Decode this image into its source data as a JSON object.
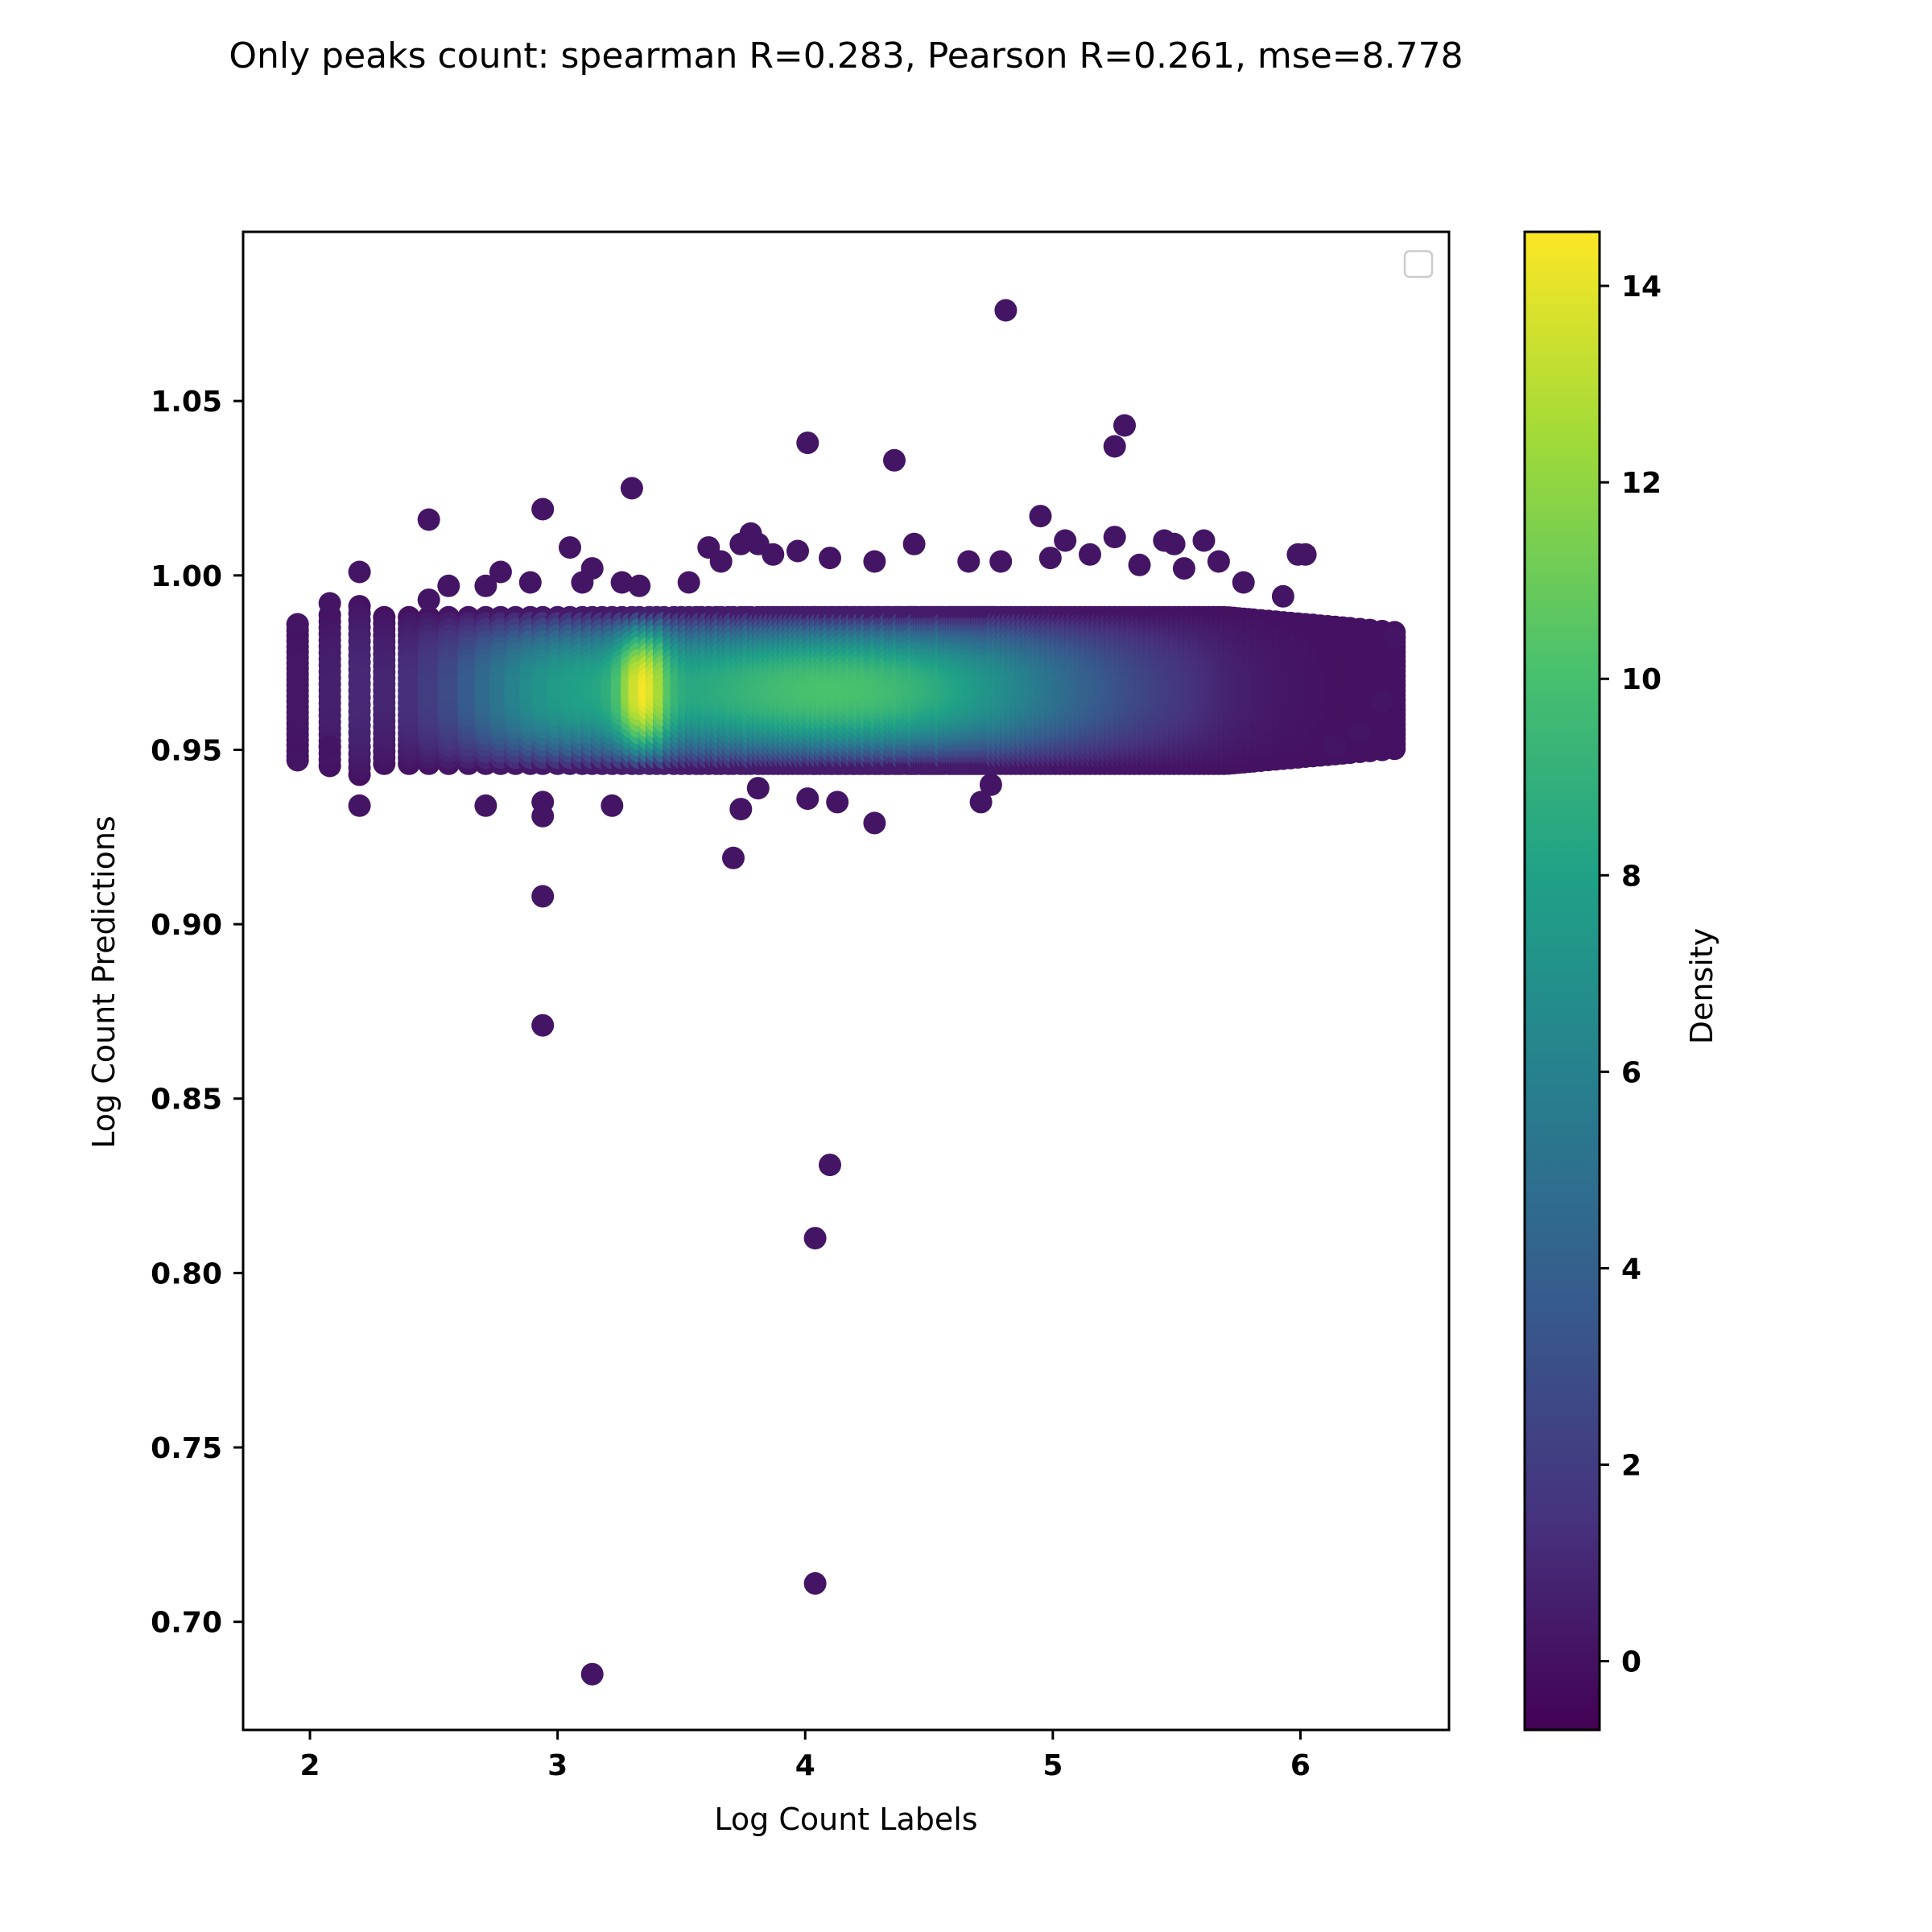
{
  "chart_data": {
    "type": "scatter",
    "title": "Only peaks count: spearman R=0.283, Pearson R=0.261, mse=8.778",
    "xlabel": "Log Count Labels",
    "ylabel": "Log Count Predictions",
    "xlim": [
      1.73,
      6.6
    ],
    "ylim": [
      0.669,
      1.0985
    ],
    "xticks": [
      2,
      3,
      4,
      5,
      6
    ],
    "xtick_labels": [
      "2",
      "3",
      "4",
      "5",
      "6"
    ],
    "yticks": [
      0.7,
      0.75,
      0.8,
      0.85,
      0.9,
      0.95,
      1.0,
      1.05
    ],
    "ytick_labels": [
      "0.70",
      "0.75",
      "0.80",
      "0.85",
      "0.90",
      "0.95",
      "1.00",
      "1.05"
    ],
    "grid": false,
    "legend": "top-right (empty)",
    "colormap": "viridis",
    "colors": [
      "#440154",
      "#46327e",
      "#365c8d",
      "#277f8e",
      "#1fa187",
      "#4ac16d",
      "#a0da39",
      "#fde725"
    ],
    "colorbar": {
      "label": "Density",
      "range": [
        -0.7,
        14.55
      ],
      "ticks": [
        0,
        2,
        4,
        6,
        8,
        10,
        12,
        14
      ],
      "tick_labels": [
        "0",
        "2",
        "4",
        "6",
        "8",
        "10",
        "12",
        "14"
      ]
    },
    "x_levels": [
      1.95,
      2.08,
      2.2,
      2.3,
      2.4,
      2.48,
      2.56,
      2.64,
      2.71,
      2.77,
      2.83,
      2.89,
      2.94,
      3.0,
      3.05,
      3.1,
      3.14,
      3.18,
      3.22,
      3.26,
      3.3,
      3.33,
      3.37,
      3.4,
      3.43,
      3.47,
      3.5,
      3.53,
      3.56,
      3.58,
      3.61,
      3.64,
      3.66,
      3.69,
      3.71,
      3.74,
      3.76,
      3.78,
      3.81,
      3.83,
      3.85,
      3.87,
      3.89,
      3.91,
      3.93,
      3.95,
      3.97,
      3.99,
      4.01,
      4.03,
      4.04,
      4.06,
      4.08,
      4.1,
      4.11,
      4.13,
      4.14,
      4.16,
      4.17,
      4.19,
      4.2,
      4.22,
      4.23,
      4.25,
      4.26,
      4.28,
      4.29,
      4.3,
      4.32,
      4.33,
      4.34,
      4.36,
      4.37,
      4.38,
      4.39,
      4.41,
      4.42,
      4.43,
      4.44,
      4.45,
      4.47,
      4.48,
      4.49,
      4.5,
      4.51,
      4.52,
      4.53,
      4.54,
      4.55,
      4.56,
      4.58,
      4.59,
      4.6,
      4.61,
      4.62,
      4.63,
      4.64,
      4.65,
      4.66,
      4.67,
      4.68,
      4.69,
      4.7,
      4.71,
      4.72,
      4.73,
      4.74,
      4.75,
      4.76,
      4.77,
      4.79,
      4.81,
      4.83,
      4.85,
      4.87,
      4.89,
      4.91,
      4.93,
      4.95,
      4.97,
      4.99,
      5.01,
      5.03,
      5.05,
      5.07,
      5.09,
      5.11,
      5.13,
      5.15,
      5.17,
      5.19,
      5.21,
      5.23,
      5.25,
      5.27,
      5.29,
      5.31,
      5.33,
      5.35,
      5.37,
      5.39,
      5.41,
      5.43,
      5.45,
      5.47,
      5.49,
      5.51,
      5.53,
      5.55,
      5.57,
      5.59,
      5.61,
      5.63,
      5.65,
      5.67,
      5.69,
      5.71,
      5.73,
      5.75,
      5.77,
      5.79,
      5.81,
      5.84,
      5.87,
      5.9,
      5.93,
      5.96,
      5.99,
      6.02,
      6.05,
      6.08,
      6.11,
      6.14,
      6.17,
      6.2,
      6.24,
      6.28,
      6.33,
      6.38
    ],
    "core": {
      "y_center": 0.967,
      "y_half_width": 0.021,
      "density_peak_x": 3.37,
      "density_max": 14.5
    },
    "outliers": [
      {
        "x": 1.95,
        "y": 0.986
      },
      {
        "x": 1.95,
        "y": 0.947
      },
      {
        "x": 2.08,
        "y": 0.992
      },
      {
        "x": 2.08,
        "y": 0.951
      },
      {
        "x": 2.2,
        "y": 1.001
      },
      {
        "x": 2.2,
        "y": 0.934
      },
      {
        "x": 2.48,
        "y": 1.016
      },
      {
        "x": 2.48,
        "y": 0.993
      },
      {
        "x": 2.56,
        "y": 0.997
      },
      {
        "x": 2.71,
        "y": 0.997
      },
      {
        "x": 2.71,
        "y": 0.934
      },
      {
        "x": 2.77,
        "y": 1.001
      },
      {
        "x": 2.89,
        "y": 0.998
      },
      {
        "x": 2.94,
        "y": 1.019
      },
      {
        "x": 2.94,
        "y": 0.935
      },
      {
        "x": 2.94,
        "y": 0.931
      },
      {
        "x": 2.94,
        "y": 0.908
      },
      {
        "x": 2.94,
        "y": 0.871
      },
      {
        "x": 3.05,
        "y": 1.008
      },
      {
        "x": 3.1,
        "y": 0.998
      },
      {
        "x": 3.14,
        "y": 1.002
      },
      {
        "x": 3.14,
        "y": 0.685
      },
      {
        "x": 3.22,
        "y": 0.934
      },
      {
        "x": 3.26,
        "y": 0.998
      },
      {
        "x": 3.3,
        "y": 1.025
      },
      {
        "x": 3.33,
        "y": 0.997
      },
      {
        "x": 3.53,
        "y": 0.998
      },
      {
        "x": 3.61,
        "y": 1.008
      },
      {
        "x": 3.66,
        "y": 1.004
      },
      {
        "x": 3.71,
        "y": 0.919
      },
      {
        "x": 3.74,
        "y": 1.009
      },
      {
        "x": 3.74,
        "y": 0.933
      },
      {
        "x": 3.78,
        "y": 1.012
      },
      {
        "x": 3.81,
        "y": 1.009
      },
      {
        "x": 3.81,
        "y": 0.939
      },
      {
        "x": 3.87,
        "y": 1.006
      },
      {
        "x": 3.97,
        "y": 1.007
      },
      {
        "x": 4.01,
        "y": 1.038
      },
      {
        "x": 4.01,
        "y": 0.936
      },
      {
        "x": 4.04,
        "y": 0.81
      },
      {
        "x": 4.04,
        "y": 0.711
      },
      {
        "x": 4.1,
        "y": 1.005
      },
      {
        "x": 4.1,
        "y": 0.831
      },
      {
        "x": 4.13,
        "y": 0.935
      },
      {
        "x": 4.28,
        "y": 1.004
      },
      {
        "x": 4.28,
        "y": 0.929
      },
      {
        "x": 4.36,
        "y": 1.033
      },
      {
        "x": 4.44,
        "y": 1.009
      },
      {
        "x": 4.66,
        "y": 1.004
      },
      {
        "x": 4.71,
        "y": 0.935
      },
      {
        "x": 4.75,
        "y": 0.94
      },
      {
        "x": 4.79,
        "y": 1.004
      },
      {
        "x": 4.81,
        "y": 1.076
      },
      {
        "x": 4.95,
        "y": 1.017
      },
      {
        "x": 4.99,
        "y": 1.005
      },
      {
        "x": 5.05,
        "y": 1.01
      },
      {
        "x": 5.15,
        "y": 1.006
      },
      {
        "x": 5.25,
        "y": 1.037
      },
      {
        "x": 5.25,
        "y": 1.011
      },
      {
        "x": 5.29,
        "y": 1.043
      },
      {
        "x": 5.35,
        "y": 1.003
      },
      {
        "x": 5.45,
        "y": 1.01
      },
      {
        "x": 5.49,
        "y": 1.009
      },
      {
        "x": 5.53,
        "y": 1.002
      },
      {
        "x": 5.61,
        "y": 1.01
      },
      {
        "x": 5.67,
        "y": 1.004
      },
      {
        "x": 5.77,
        "y": 0.998
      },
      {
        "x": 5.93,
        "y": 0.994
      },
      {
        "x": 5.99,
        "y": 1.006
      },
      {
        "x": 6.02,
        "y": 1.006
      },
      {
        "x": 6.14,
        "y": 0.951
      },
      {
        "x": 6.24,
        "y": 0.955
      },
      {
        "x": 6.33,
        "y": 0.964
      },
      {
        "x": 6.38,
        "y": 0.982
      }
    ]
  }
}
